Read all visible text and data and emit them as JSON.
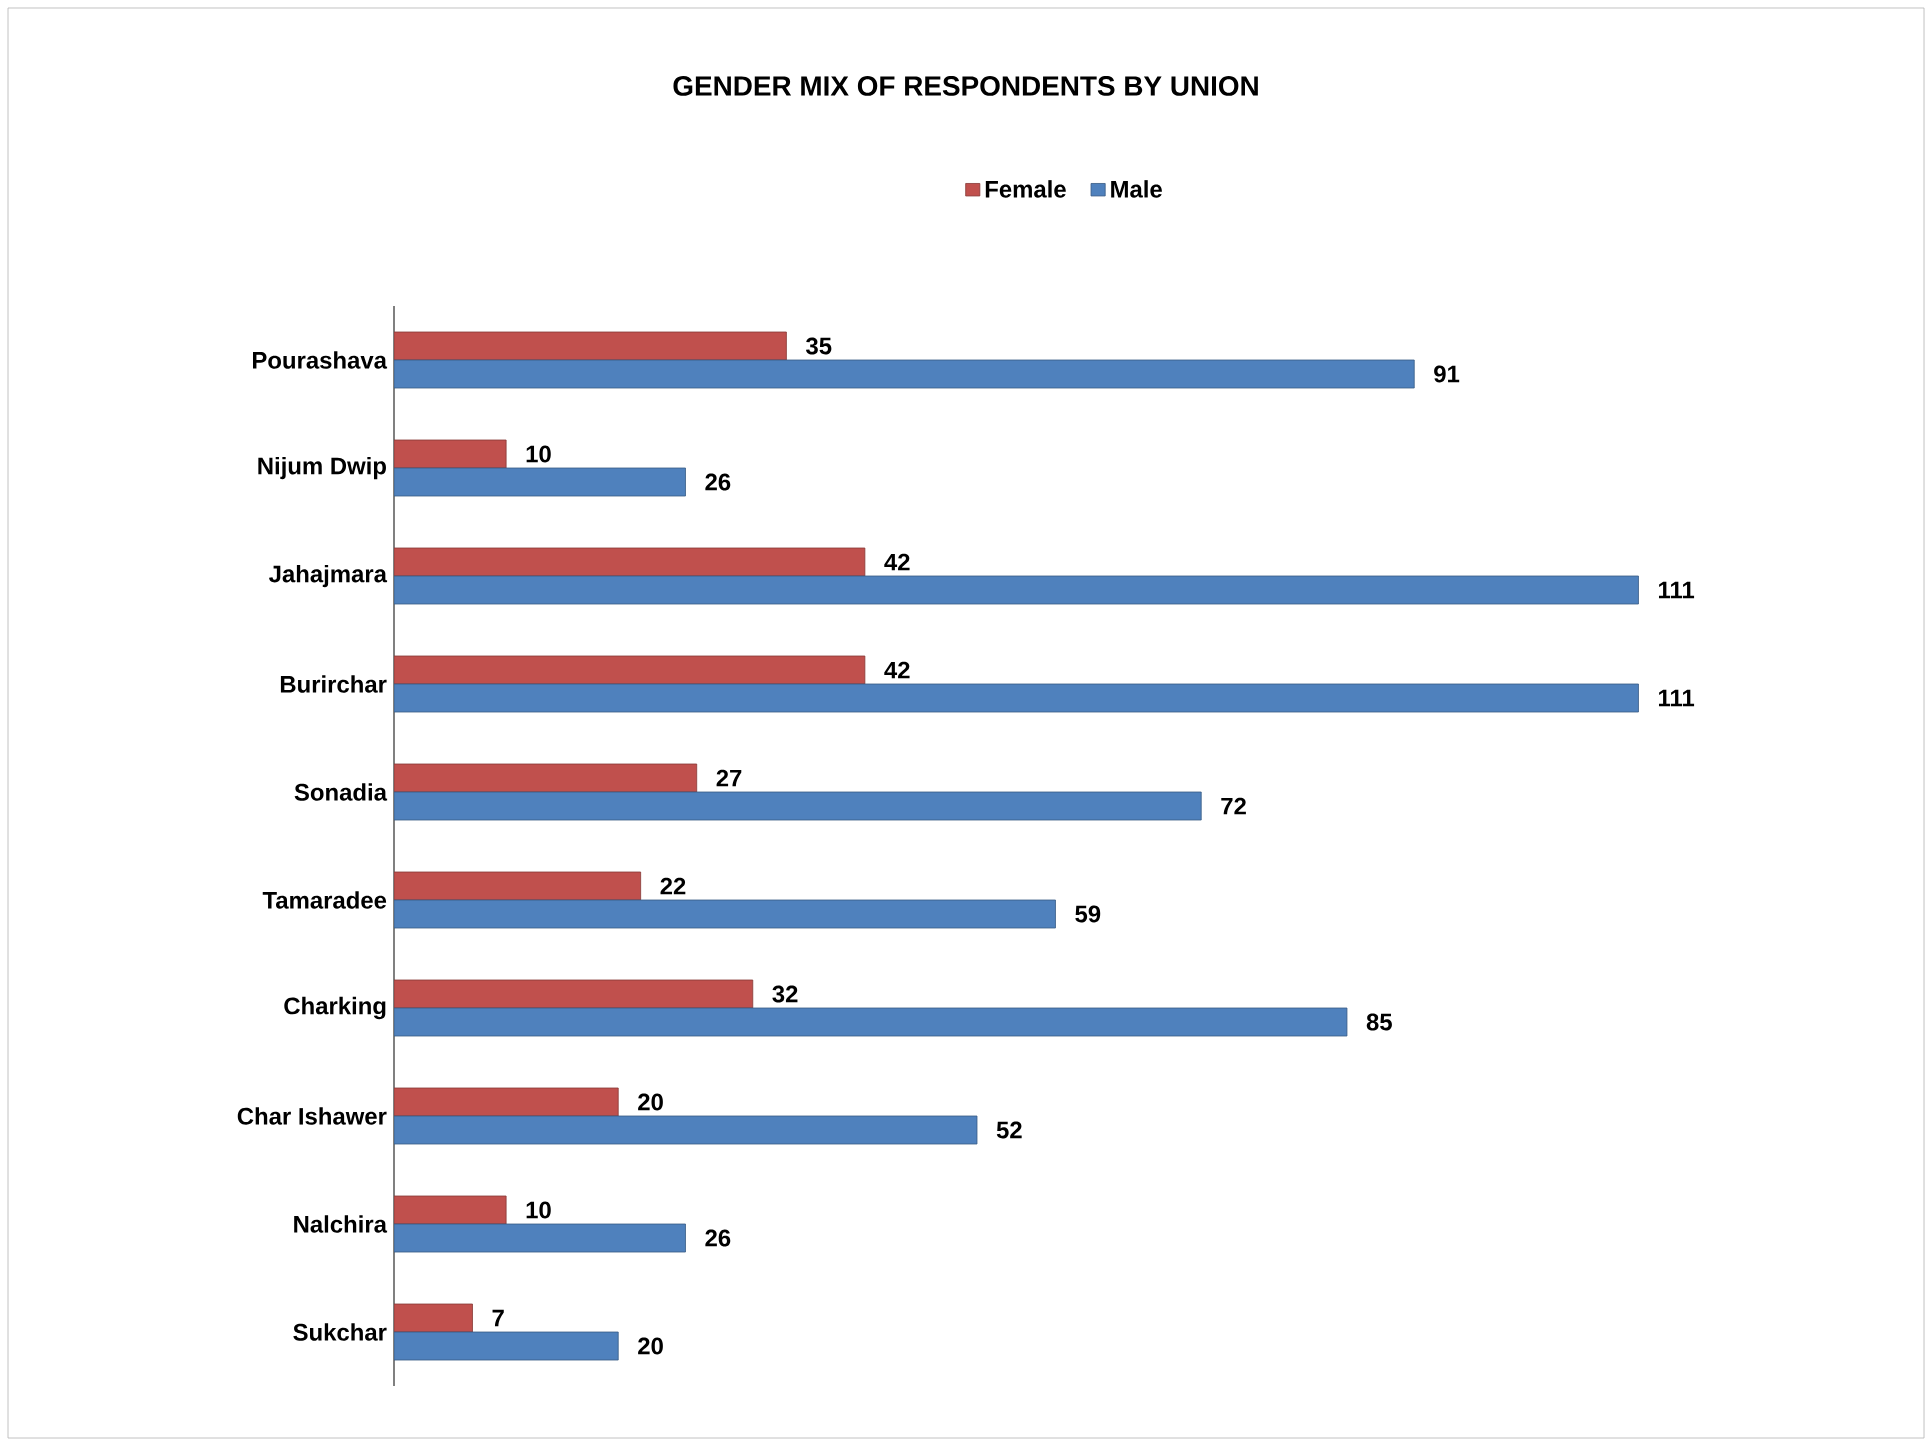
{
  "chart_data": {
    "type": "bar",
    "orientation": "horizontal",
    "title": "GENDER MIX OF RESPONDENTS BY UNION",
    "categories": [
      "Pourashava",
      "Nijum Dwip",
      "Jahajmara",
      "Burirchar",
      "Sonadia",
      "Tamaradee",
      "Charking",
      "Char Ishawer",
      "Nalchira",
      "Sukchar"
    ],
    "series": [
      {
        "name": "Female",
        "color": "#c0504d",
        "values": [
          35,
          10,
          42,
          42,
          27,
          22,
          32,
          20,
          10,
          7
        ]
      },
      {
        "name": "Male",
        "color": "#4f81bd",
        "values": [
          91,
          26,
          111,
          111,
          72,
          59,
          85,
          52,
          26,
          20
        ]
      }
    ],
    "data_labels": true,
    "legend": "top"
  }
}
